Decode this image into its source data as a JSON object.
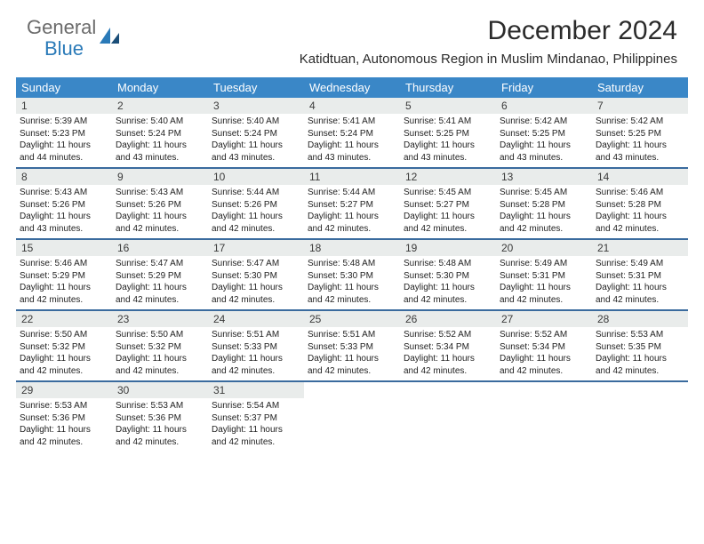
{
  "brand": {
    "general": "General",
    "blue": "Blue"
  },
  "header": {
    "month_title": "December 2024",
    "location": "Katidtuan, Autonomous Region in Muslim Mindanao, Philippines"
  },
  "colors": {
    "header_bar": "#3a87c7",
    "week_divider": "#3a6b9e",
    "daynum_bg": "#e9eceb",
    "logo_gray": "#6b6b6b",
    "logo_blue": "#2a7ab8"
  },
  "weekdays": [
    "Sunday",
    "Monday",
    "Tuesday",
    "Wednesday",
    "Thursday",
    "Friday",
    "Saturday"
  ],
  "days": [
    {
      "n": "1",
      "sunrise": "Sunrise: 5:39 AM",
      "sunset": "Sunset: 5:23 PM",
      "day1": "Daylight: 11 hours",
      "day2": "and 44 minutes."
    },
    {
      "n": "2",
      "sunrise": "Sunrise: 5:40 AM",
      "sunset": "Sunset: 5:24 PM",
      "day1": "Daylight: 11 hours",
      "day2": "and 43 minutes."
    },
    {
      "n": "3",
      "sunrise": "Sunrise: 5:40 AM",
      "sunset": "Sunset: 5:24 PM",
      "day1": "Daylight: 11 hours",
      "day2": "and 43 minutes."
    },
    {
      "n": "4",
      "sunrise": "Sunrise: 5:41 AM",
      "sunset": "Sunset: 5:24 PM",
      "day1": "Daylight: 11 hours",
      "day2": "and 43 minutes."
    },
    {
      "n": "5",
      "sunrise": "Sunrise: 5:41 AM",
      "sunset": "Sunset: 5:25 PM",
      "day1": "Daylight: 11 hours",
      "day2": "and 43 minutes."
    },
    {
      "n": "6",
      "sunrise": "Sunrise: 5:42 AM",
      "sunset": "Sunset: 5:25 PM",
      "day1": "Daylight: 11 hours",
      "day2": "and 43 minutes."
    },
    {
      "n": "7",
      "sunrise": "Sunrise: 5:42 AM",
      "sunset": "Sunset: 5:25 PM",
      "day1": "Daylight: 11 hours",
      "day2": "and 43 minutes."
    },
    {
      "n": "8",
      "sunrise": "Sunrise: 5:43 AM",
      "sunset": "Sunset: 5:26 PM",
      "day1": "Daylight: 11 hours",
      "day2": "and 43 minutes."
    },
    {
      "n": "9",
      "sunrise": "Sunrise: 5:43 AM",
      "sunset": "Sunset: 5:26 PM",
      "day1": "Daylight: 11 hours",
      "day2": "and 42 minutes."
    },
    {
      "n": "10",
      "sunrise": "Sunrise: 5:44 AM",
      "sunset": "Sunset: 5:26 PM",
      "day1": "Daylight: 11 hours",
      "day2": "and 42 minutes."
    },
    {
      "n": "11",
      "sunrise": "Sunrise: 5:44 AM",
      "sunset": "Sunset: 5:27 PM",
      "day1": "Daylight: 11 hours",
      "day2": "and 42 minutes."
    },
    {
      "n": "12",
      "sunrise": "Sunrise: 5:45 AM",
      "sunset": "Sunset: 5:27 PM",
      "day1": "Daylight: 11 hours",
      "day2": "and 42 minutes."
    },
    {
      "n": "13",
      "sunrise": "Sunrise: 5:45 AM",
      "sunset": "Sunset: 5:28 PM",
      "day1": "Daylight: 11 hours",
      "day2": "and 42 minutes."
    },
    {
      "n": "14",
      "sunrise": "Sunrise: 5:46 AM",
      "sunset": "Sunset: 5:28 PM",
      "day1": "Daylight: 11 hours",
      "day2": "and 42 minutes."
    },
    {
      "n": "15",
      "sunrise": "Sunrise: 5:46 AM",
      "sunset": "Sunset: 5:29 PM",
      "day1": "Daylight: 11 hours",
      "day2": "and 42 minutes."
    },
    {
      "n": "16",
      "sunrise": "Sunrise: 5:47 AM",
      "sunset": "Sunset: 5:29 PM",
      "day1": "Daylight: 11 hours",
      "day2": "and 42 minutes."
    },
    {
      "n": "17",
      "sunrise": "Sunrise: 5:47 AM",
      "sunset": "Sunset: 5:30 PM",
      "day1": "Daylight: 11 hours",
      "day2": "and 42 minutes."
    },
    {
      "n": "18",
      "sunrise": "Sunrise: 5:48 AM",
      "sunset": "Sunset: 5:30 PM",
      "day1": "Daylight: 11 hours",
      "day2": "and 42 minutes."
    },
    {
      "n": "19",
      "sunrise": "Sunrise: 5:48 AM",
      "sunset": "Sunset: 5:30 PM",
      "day1": "Daylight: 11 hours",
      "day2": "and 42 minutes."
    },
    {
      "n": "20",
      "sunrise": "Sunrise: 5:49 AM",
      "sunset": "Sunset: 5:31 PM",
      "day1": "Daylight: 11 hours",
      "day2": "and 42 minutes."
    },
    {
      "n": "21",
      "sunrise": "Sunrise: 5:49 AM",
      "sunset": "Sunset: 5:31 PM",
      "day1": "Daylight: 11 hours",
      "day2": "and 42 minutes."
    },
    {
      "n": "22",
      "sunrise": "Sunrise: 5:50 AM",
      "sunset": "Sunset: 5:32 PM",
      "day1": "Daylight: 11 hours",
      "day2": "and 42 minutes."
    },
    {
      "n": "23",
      "sunrise": "Sunrise: 5:50 AM",
      "sunset": "Sunset: 5:32 PM",
      "day1": "Daylight: 11 hours",
      "day2": "and 42 minutes."
    },
    {
      "n": "24",
      "sunrise": "Sunrise: 5:51 AM",
      "sunset": "Sunset: 5:33 PM",
      "day1": "Daylight: 11 hours",
      "day2": "and 42 minutes."
    },
    {
      "n": "25",
      "sunrise": "Sunrise: 5:51 AM",
      "sunset": "Sunset: 5:33 PM",
      "day1": "Daylight: 11 hours",
      "day2": "and 42 minutes."
    },
    {
      "n": "26",
      "sunrise": "Sunrise: 5:52 AM",
      "sunset": "Sunset: 5:34 PM",
      "day1": "Daylight: 11 hours",
      "day2": "and 42 minutes."
    },
    {
      "n": "27",
      "sunrise": "Sunrise: 5:52 AM",
      "sunset": "Sunset: 5:34 PM",
      "day1": "Daylight: 11 hours",
      "day2": "and 42 minutes."
    },
    {
      "n": "28",
      "sunrise": "Sunrise: 5:53 AM",
      "sunset": "Sunset: 5:35 PM",
      "day1": "Daylight: 11 hours",
      "day2": "and 42 minutes."
    },
    {
      "n": "29",
      "sunrise": "Sunrise: 5:53 AM",
      "sunset": "Sunset: 5:36 PM",
      "day1": "Daylight: 11 hours",
      "day2": "and 42 minutes."
    },
    {
      "n": "30",
      "sunrise": "Sunrise: 5:53 AM",
      "sunset": "Sunset: 5:36 PM",
      "day1": "Daylight: 11 hours",
      "day2": "and 42 minutes."
    },
    {
      "n": "31",
      "sunrise": "Sunrise: 5:54 AM",
      "sunset": "Sunset: 5:37 PM",
      "day1": "Daylight: 11 hours",
      "day2": "and 42 minutes."
    }
  ],
  "layout": {
    "start_weekday": 0,
    "trailing_blanks": 4
  }
}
